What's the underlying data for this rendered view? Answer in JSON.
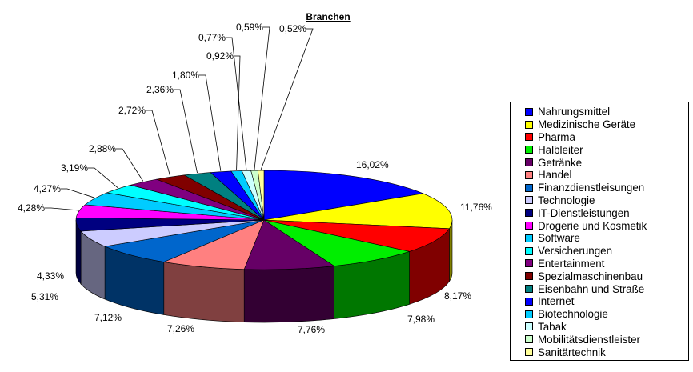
{
  "chart_data": {
    "type": "pie",
    "title": "Branchen",
    "legend_position": "right",
    "three_d": true,
    "slices": [
      {
        "name": "Nahrungsmittel",
        "value": 16.02,
        "label": "16,02%",
        "color": "#0000ff"
      },
      {
        "name": "Medizinische Geräte",
        "value": 11.76,
        "label": "11,76%",
        "color": "#ffff00"
      },
      {
        "name": "Pharma",
        "value": 8.17,
        "label": "8,17%",
        "color": "#ff0000"
      },
      {
        "name": "Halbleiter",
        "value": 7.98,
        "label": "7,98%",
        "color": "#00ee00"
      },
      {
        "name": "Getränke",
        "value": 7.76,
        "label": "7,76%",
        "color": "#660066"
      },
      {
        "name": "Handel",
        "value": 7.26,
        "label": "7,26%",
        "color": "#ff8080"
      },
      {
        "name": "Finanzdienstleisungen",
        "value": 7.12,
        "label": "7,12%",
        "color": "#0066cc"
      },
      {
        "name": "Technologie",
        "value": 5.31,
        "label": "5,31%",
        "color": "#ccccff"
      },
      {
        "name": "IT-Dienstleistungen",
        "value": 4.33,
        "label": "4,33%",
        "color": "#000080"
      },
      {
        "name": "Drogerie und Kosmetik",
        "value": 4.28,
        "label": "4,28%",
        "color": "#ff00ff"
      },
      {
        "name": "Software",
        "value": 4.27,
        "label": "4,27%",
        "color": "#00ccff"
      },
      {
        "name": "Versicherungen",
        "value": 3.19,
        "label": "3,19%",
        "color": "#00ffff"
      },
      {
        "name": "Entertainment",
        "value": 2.88,
        "label": "2,88%",
        "color": "#800080"
      },
      {
        "name": "Spezialmaschinenbau",
        "value": 2.72,
        "label": "2,72%",
        "color": "#800000"
      },
      {
        "name": "Eisenbahn und Straße",
        "value": 2.36,
        "label": "2,36%",
        "color": "#008080"
      },
      {
        "name": "Internet",
        "value": 1.8,
        "label": "1,80%",
        "color": "#0000ff"
      },
      {
        "name": "Biotechnologie",
        "value": 0.92,
        "label": "0,92%",
        "color": "#00ccff"
      },
      {
        "name": "Tabak",
        "value": 0.77,
        "label": "0,77%",
        "color": "#ccffff"
      },
      {
        "name": "Mobilitätsdienstleister",
        "value": 0.59,
        "label": "0,59%",
        "color": "#ccffcc"
      },
      {
        "name": "Sanitärtechnik",
        "value": 0.52,
        "label": "0,52%",
        "color": "#ffff99"
      }
    ]
  }
}
